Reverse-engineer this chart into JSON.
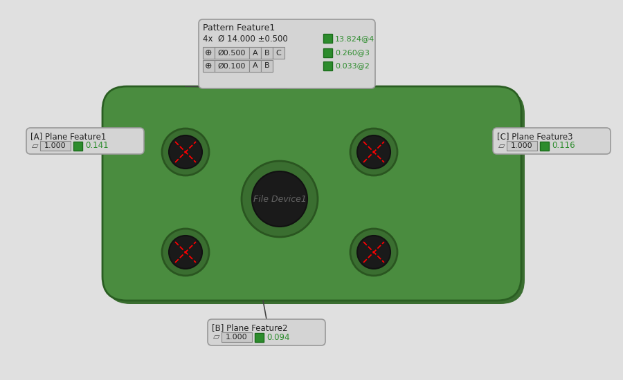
{
  "bg_color": "#e0e0e0",
  "plate_color": "#4a8c3f",
  "plate_dark": "#3a6e30",
  "title": "Pattern Feature1",
  "subtitle": "4x  Ø 14.000 ±0.500",
  "pattern_value1": "13.824@4",
  "pattern_value2": "0.260@3",
  "pattern_value3": "0.033@2",
  "row1_sym": "⊕",
  "row1_tol": "Ø0.500",
  "row2_sym": "⊕",
  "row2_tol": "Ø0.100",
  "plane_a_label": "[A] Plane Feature1",
  "plane_a_val1": "1.000",
  "plane_a_val2": "0.141",
  "plane_b_label": "[B] Plane Feature2",
  "plane_b_val1": "1.000",
  "plane_b_val2": "0.094",
  "plane_c_label": "[C] Plane Feature3",
  "plane_c_val1": "1.000",
  "plane_c_val2": "0.116",
  "green_box": "#2d8c2d",
  "green_text": "#2d8c2d",
  "file_label": "File Device1",
  "file_label_color": "#666666"
}
